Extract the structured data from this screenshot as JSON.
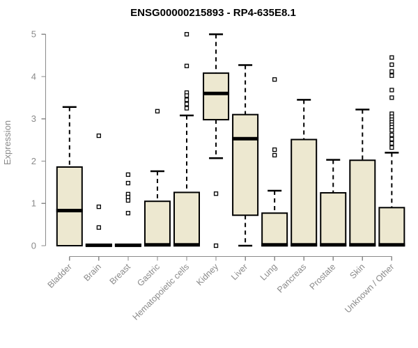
{
  "title": "ENSG00000215893 - RP4-635E8.1",
  "chart_data": {
    "type": "boxplot",
    "title": "ENSG00000215893 - RP4-635E8.1",
    "xlabel": "",
    "ylabel": "Expression",
    "ylim": [
      0,
      5
    ],
    "yticks": [
      0,
      1,
      2,
      3,
      4,
      5
    ],
    "grid": false,
    "legend": "none",
    "categories": [
      "Bladder",
      "Brain",
      "Breast",
      "Gastric",
      "Hematopoietic cells",
      "Kidney",
      "Liver",
      "Lung",
      "Pancreas",
      "Prostate",
      "Skin",
      "Unknown / Other"
    ],
    "series": [
      {
        "name": "Bladder",
        "low": 0,
        "q1": 0,
        "median": 0.83,
        "q3": 1.86,
        "high": 3.28,
        "outliers": []
      },
      {
        "name": "Brain",
        "low": 0,
        "q1": 0,
        "median": 0.01,
        "q3": 0.03,
        "high": 0.03,
        "outliers": [
          2.6,
          0.92,
          0.43
        ]
      },
      {
        "name": "Breast",
        "low": 0,
        "q1": 0,
        "median": 0.01,
        "q3": 0.03,
        "high": 0.03,
        "outliers": [
          1.68,
          1.48,
          1.22,
          1.15,
          1.07,
          0.77
        ]
      },
      {
        "name": "Gastric",
        "low": 0,
        "q1": 0,
        "median": 0.02,
        "q3": 1.05,
        "high": 1.76,
        "outliers": [
          3.18
        ]
      },
      {
        "name": "Hematopoietic cells",
        "low": 0,
        "q1": 0,
        "median": 0.02,
        "q3": 1.26,
        "high": 3.08,
        "outliers": [
          5.0,
          4.25,
          3.62,
          3.55,
          3.45,
          3.35,
          3.25
        ]
      },
      {
        "name": "Kidney",
        "low": 2.07,
        "q1": 2.98,
        "median": 3.6,
        "q3": 4.08,
        "high": 5.0,
        "outliers": [
          1.23,
          0.0
        ]
      },
      {
        "name": "Liver",
        "low": 0,
        "q1": 0.72,
        "median": 2.53,
        "q3": 3.1,
        "high": 4.27,
        "outliers": []
      },
      {
        "name": "Lung",
        "low": 0,
        "q1": 0,
        "median": 0.02,
        "q3": 0.77,
        "high": 1.3,
        "outliers": [
          3.93,
          2.27,
          2.14
        ]
      },
      {
        "name": "Pancreas",
        "low": 0,
        "q1": 0,
        "median": 0.02,
        "q3": 2.51,
        "high": 3.45,
        "outliers": []
      },
      {
        "name": "Prostate",
        "low": 0,
        "q1": 0,
        "median": 0.02,
        "q3": 1.25,
        "high": 2.03,
        "outliers": []
      },
      {
        "name": "Skin",
        "low": 0,
        "q1": 0,
        "median": 0.02,
        "q3": 2.02,
        "high": 3.22,
        "outliers": []
      },
      {
        "name": "Unknown / Other",
        "low": 0,
        "q1": 0,
        "median": 0.02,
        "q3": 0.9,
        "high": 2.2,
        "outliers": [
          4.45,
          4.28,
          4.12,
          4.02,
          3.68,
          3.5,
          3.12,
          3.05,
          2.98,
          2.92,
          2.86,
          2.8,
          2.73,
          2.62,
          2.52,
          2.42,
          2.32
        ]
      }
    ],
    "colors": {
      "box_fill": "#EDE8D0",
      "box_border": "#000000",
      "median": "#000000",
      "whisker": "#000000",
      "outlier_stroke": "#000000",
      "outlier_fill": "#FFFFFF",
      "axis": "#8A8A8A",
      "axis_text": "#8A8A8A",
      "title_text": "#000000",
      "background": "#FFFFFF"
    }
  }
}
